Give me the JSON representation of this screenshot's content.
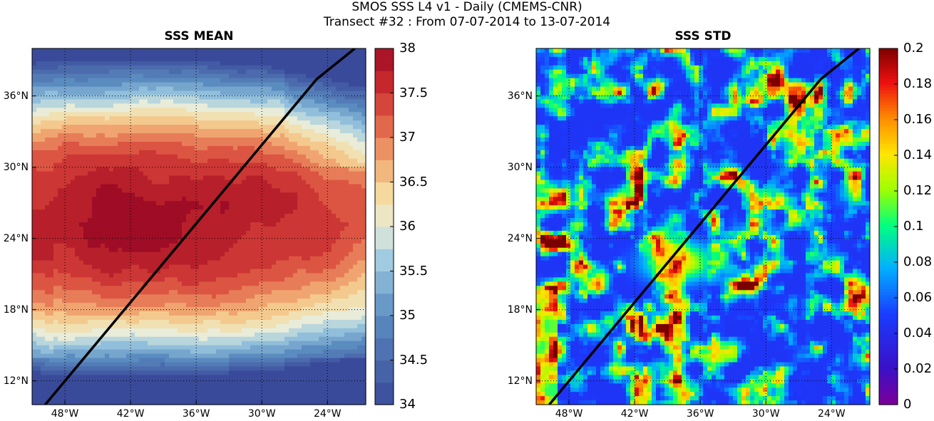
{
  "title": {
    "line1": "SMOS SSS L4 v1 - Daily (CMEMS-CNR)",
    "line2": "Transect #32 : From 07-07-2014 to 13-07-2014"
  },
  "panels": [
    {
      "id": "mean",
      "title": "SSS MEAN",
      "colormap": "diverging-red-yellow-blue",
      "colorbar": {
        "min": 34,
        "max": 38,
        "ticks": [
          "34",
          "34.5",
          "35",
          "35.5",
          "36",
          "36.5",
          "37",
          "37.5",
          "38"
        ]
      }
    },
    {
      "id": "std",
      "title": "SSS STD",
      "colormap": "jet",
      "colorbar": {
        "min": 0,
        "max": 0.2,
        "ticks": [
          "0",
          "0.02",
          "0.04",
          "0.06",
          "0.08",
          "0.1",
          "0.12",
          "0.14",
          "0.16",
          "0.18",
          "0.2"
        ]
      }
    }
  ],
  "map_extent": {
    "lon": [
      -51,
      -20.5
    ],
    "lat": [
      10,
      40
    ]
  },
  "lon_ticks": [
    "48°W",
    "42°W",
    "36°W",
    "30°W",
    "24°W"
  ],
  "lat_ticks": [
    "36°N",
    "30°N",
    "24°N",
    "18°N",
    "12°N"
  ],
  "transect": {
    "lon": [
      -49.8,
      -25,
      -21.5
    ],
    "lat": [
      10,
      37.4,
      40
    ]
  },
  "colors": {
    "transect": "#000000",
    "grid": "#000000"
  }
}
